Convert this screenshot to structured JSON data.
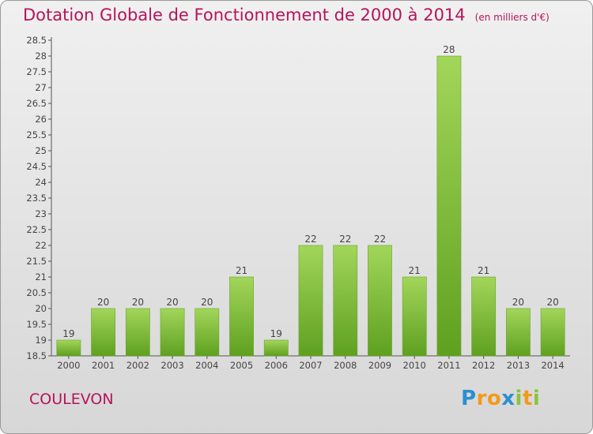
{
  "header": {
    "title": "Dotation Globale de Fonctionnement de 2000 à 2014",
    "subtitle": "(en milliers d'€)"
  },
  "commune": "COULEVON",
  "logo": {
    "text": "Proxiti"
  },
  "colors": {
    "bar_light": "#a2d65a",
    "bar_dark": "#5fa020",
    "title": "#b5145b"
  },
  "chart_data": {
    "type": "bar",
    "categories": [
      "2000",
      "2001",
      "2002",
      "2003",
      "2004",
      "2005",
      "2006",
      "2007",
      "2008",
      "2009",
      "2010",
      "2011",
      "2012",
      "2013",
      "2014"
    ],
    "values": [
      19,
      20,
      20,
      20,
      20,
      21,
      19,
      22,
      22,
      22,
      21,
      28,
      21,
      20,
      20
    ],
    "ylim": [
      18.5,
      28.5
    ],
    "yticks": [
      18.5,
      19,
      19.5,
      20,
      20.5,
      21,
      21.5,
      22,
      22.5,
      23,
      23.5,
      24,
      24.5,
      25,
      25.5,
      26,
      26.5,
      27,
      27.5,
      28,
      28.5
    ],
    "grid": false
  }
}
